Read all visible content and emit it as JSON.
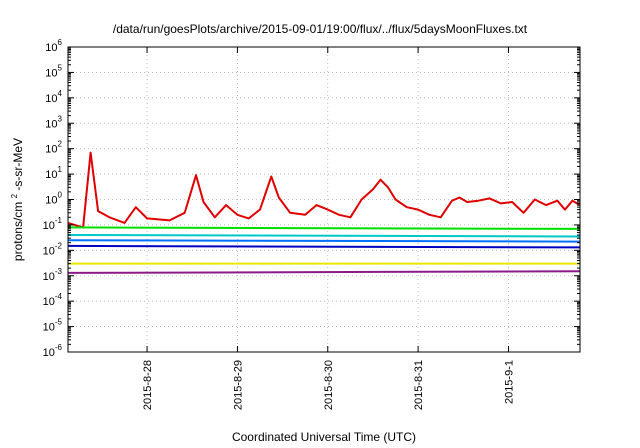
{
  "chart_data": {
    "type": "line",
    "title": "/data/run/goesPlots/archive/2015-09-01/19:00/flux/../flux/5daysMoonFluxes.txt",
    "xlabel": "Coordinated Universal Time (UTC)",
    "ylabel": {
      "before": "protons/cm",
      "superscript": "2",
      "after": "-s-sr-MeV"
    },
    "yscale": "log",
    "ylim": [
      1e-06,
      1000000.0
    ],
    "y_ticks": [
      {
        "mantissa": "10",
        "exponent": "-6",
        "value": 1e-06
      },
      {
        "mantissa": "10",
        "exponent": "-5",
        "value": 1e-05
      },
      {
        "mantissa": "10",
        "exponent": "-4",
        "value": 0.0001
      },
      {
        "mantissa": "10",
        "exponent": "-3",
        "value": 0.001
      },
      {
        "mantissa": "10",
        "exponent": "-2",
        "value": 0.01
      },
      {
        "mantissa": "10",
        "exponent": "-1",
        "value": 0.1
      },
      {
        "mantissa": "10",
        "exponent": "0",
        "value": 1
      },
      {
        "mantissa": "10",
        "exponent": "1",
        "value": 10
      },
      {
        "mantissa": "10",
        "exponent": "2",
        "value": 100
      },
      {
        "mantissa": "10",
        "exponent": "3",
        "value": 1000
      },
      {
        "mantissa": "10",
        "exponent": "4",
        "value": 10000
      },
      {
        "mantissa": "10",
        "exponent": "5",
        "value": 100000
      },
      {
        "mantissa": "10",
        "exponent": "6",
        "value": 1000000
      }
    ],
    "xlim": [
      "2015-08-27 03:00",
      "2015-09-01 19:00"
    ],
    "x_ticks": [
      {
        "label": "2015-8-28",
        "value": "2015-08-28 00:00"
      },
      {
        "label": "2015-8-29",
        "value": "2015-08-29 00:00"
      },
      {
        "label": "2015-8-30",
        "value": "2015-08-30 00:00"
      },
      {
        "label": "2015-8-31",
        "value": "2015-08-31 00:00"
      },
      {
        "label": "2015-9-1",
        "value": "2015-09-01 00:00"
      }
    ],
    "grid": true,
    "legend": "none",
    "series": [
      {
        "color": "#e00000",
        "points": [
          [
            "2015-08-27 03:00",
            0.12
          ],
          [
            "2015-08-27 07:00",
            0.08
          ],
          [
            "2015-08-27 09:00",
            70
          ],
          [
            "2015-08-27 11:00",
            0.35
          ],
          [
            "2015-08-27 14:00",
            0.2
          ],
          [
            "2015-08-27 18:00",
            0.12
          ],
          [
            "2015-08-27 21:00",
            0.5
          ],
          [
            "2015-08-28 00:00",
            0.18
          ],
          [
            "2015-08-28 06:00",
            0.15
          ],
          [
            "2015-08-28 10:00",
            0.3
          ],
          [
            "2015-08-28 13:00",
            9
          ],
          [
            "2015-08-28 15:00",
            0.8
          ],
          [
            "2015-08-28 18:00",
            0.2
          ],
          [
            "2015-08-28 21:00",
            0.6
          ],
          [
            "2015-08-29 00:00",
            0.25
          ],
          [
            "2015-08-29 03:00",
            0.18
          ],
          [
            "2015-08-29 06:00",
            0.4
          ],
          [
            "2015-08-29 09:00",
            8
          ],
          [
            "2015-08-29 11:00",
            1.2
          ],
          [
            "2015-08-29 14:00",
            0.3
          ],
          [
            "2015-08-29 18:00",
            0.25
          ],
          [
            "2015-08-29 21:00",
            0.6
          ],
          [
            "2015-08-30 00:00",
            0.4
          ],
          [
            "2015-08-30 03:00",
            0.25
          ],
          [
            "2015-08-30 06:00",
            0.2
          ],
          [
            "2015-08-30 09:00",
            1
          ],
          [
            "2015-08-30 12:00",
            2.5
          ],
          [
            "2015-08-30 14:00",
            6
          ],
          [
            "2015-08-30 16:00",
            3
          ],
          [
            "2015-08-30 18:00",
            1
          ],
          [
            "2015-08-30 21:00",
            0.5
          ],
          [
            "2015-08-31 00:00",
            0.4
          ],
          [
            "2015-08-31 03:00",
            0.25
          ],
          [
            "2015-08-31 06:00",
            0.2
          ],
          [
            "2015-08-31 09:00",
            0.9
          ],
          [
            "2015-08-31 11:00",
            1.2
          ],
          [
            "2015-08-31 13:00",
            0.8
          ],
          [
            "2015-08-31 16:00",
            0.9
          ],
          [
            "2015-08-31 19:00",
            1.1
          ],
          [
            "2015-08-31 22:00",
            0.7
          ],
          [
            "2015-09-01 01:00",
            0.8
          ],
          [
            "2015-09-01 04:00",
            0.3
          ],
          [
            "2015-09-01 07:00",
            1
          ],
          [
            "2015-09-01 10:00",
            0.6
          ],
          [
            "2015-09-01 13:00",
            0.9
          ],
          [
            "2015-09-01 15:00",
            0.4
          ],
          [
            "2015-09-01 17:00",
            0.9
          ],
          [
            "2015-09-01 19:00",
            0.6
          ]
        ]
      },
      {
        "color": "#00e000",
        "points": [
          [
            "2015-08-27 03:00",
            0.08
          ],
          [
            "2015-09-01 19:00",
            0.07
          ]
        ]
      },
      {
        "color": "#00c8c8",
        "points": [
          [
            "2015-08-27 03:00",
            0.04
          ],
          [
            "2015-09-01 19:00",
            0.035
          ]
        ]
      },
      {
        "color": "#0070ff",
        "points": [
          [
            "2015-08-27 03:00",
            0.025
          ],
          [
            "2015-09-01 19:00",
            0.022
          ]
        ]
      },
      {
        "color": "#0000c0",
        "points": [
          [
            "2015-08-27 03:00",
            0.015
          ],
          [
            "2015-09-01 19:00",
            0.013
          ]
        ]
      },
      {
        "color": "#e8e800",
        "points": [
          [
            "2015-08-27 03:00",
            0.003
          ],
          [
            "2015-09-01 19:00",
            0.003
          ]
        ]
      },
      {
        "color": "#8b1a89",
        "points": [
          [
            "2015-08-27 03:00",
            0.0013
          ],
          [
            "2015-09-01 19:00",
            0.0015
          ]
        ]
      }
    ]
  }
}
